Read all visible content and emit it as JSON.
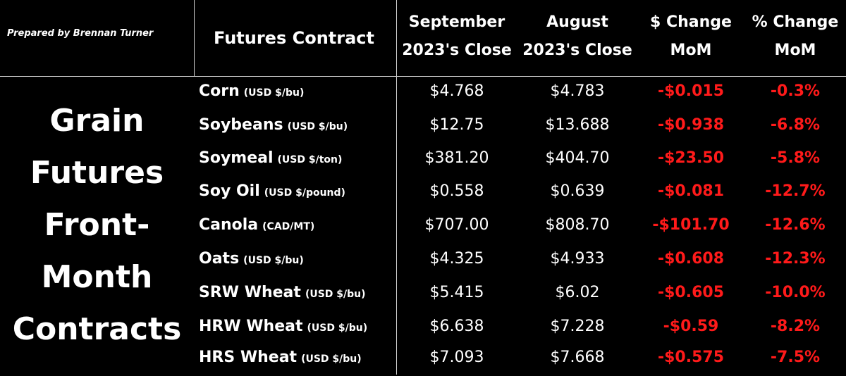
{
  "credit": "Prepared by Brennan Turner",
  "headers": {
    "contract": "Futures Contract",
    "sep_close": [
      "September",
      "2023's Close"
    ],
    "aug_close": [
      "August",
      "2023's Close"
    ],
    "dollar_change": [
      "$ Change",
      "MoM"
    ],
    "pct_change": [
      "% Change",
      "MoM"
    ]
  },
  "side_title": [
    "Grain",
    "Futures",
    "Front-",
    "Month",
    "Contracts"
  ],
  "rows": [
    {
      "name": "Corn",
      "unit": "(USD $/bu)",
      "sep": "$4.768",
      "aug": "$4.783",
      "change": "-$0.015",
      "pct": "-0.3%"
    },
    {
      "name": "Soybeans",
      "unit": "(USD $/bu)",
      "sep": "$12.75",
      "aug": "$13.688",
      "change": "-$0.938",
      "pct": "-6.8%"
    },
    {
      "name": "Soymeal",
      "unit": "(USD $/ton)",
      "sep": "$381.20",
      "aug": "$404.70",
      "change": "-$23.50",
      "pct": "-5.8%"
    },
    {
      "name": "Soy Oil",
      "unit": "(USD $/pound)",
      "sep": "$0.558",
      "aug": "$0.639",
      "change": "-$0.081",
      "pct": "-12.7%"
    },
    {
      "name": "Canola",
      "unit": "(CAD/MT)",
      "sep": "$707.00",
      "aug": "$808.70",
      "change": "-$101.70",
      "pct": "-12.6%"
    },
    {
      "name": "Oats",
      "unit": "(USD $/bu)",
      "sep": "$4.325",
      "aug": "$4.933",
      "change": "-$0.608",
      "pct": "-12.3%"
    },
    {
      "name": "SRW Wheat",
      "unit": "(USD $/bu)",
      "sep": "$5.415",
      "aug": "$6.02",
      "change": "-$0.605",
      "pct": "-10.0%"
    },
    {
      "name": "HRW Wheat",
      "unit": "(USD $/bu)",
      "sep": "$6.638",
      "aug": "$7.228",
      "change": "-$0.59",
      "pct": "-8.2%"
    },
    {
      "name": "HRS Wheat",
      "unit": "(USD $/bu)",
      "sep": "$7.093",
      "aug": "$7.668",
      "change": "-$0.575",
      "pct": "-7.5%"
    }
  ]
}
